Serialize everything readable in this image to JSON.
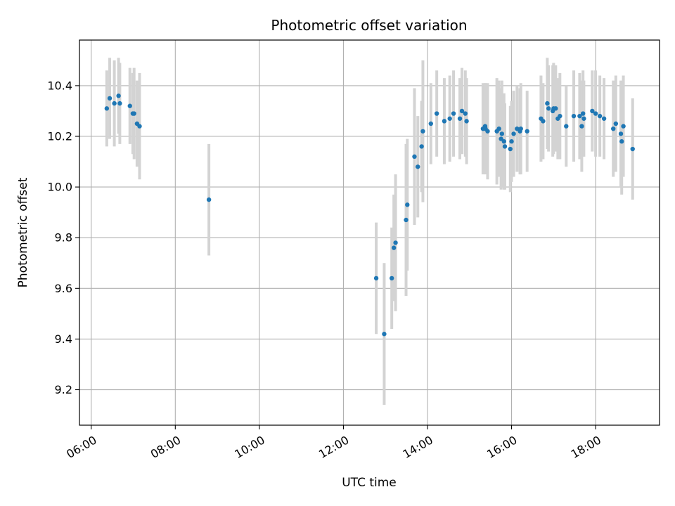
{
  "chart_data": {
    "type": "scatter",
    "title": "Photometric offset variation",
    "xlabel": "UTC time",
    "ylabel": "Photometric offset",
    "x_unit": "hours UTC",
    "xlim": [
      5.72,
      19.52
    ],
    "ylim": [
      9.06,
      10.58
    ],
    "x_ticks": [
      6,
      8,
      10,
      12,
      14,
      16,
      18
    ],
    "x_tick_labels": [
      "06:00",
      "08:00",
      "10:00",
      "12:00",
      "14:00",
      "16:00",
      "18:00"
    ],
    "y_ticks": [
      9.2,
      9.4,
      9.6,
      9.8,
      10.0,
      10.2,
      10.4
    ],
    "y_tick_labels": [
      "9.2",
      "9.4",
      "9.6",
      "9.8",
      "10.0",
      "10.2",
      "10.4"
    ],
    "grid": true,
    "colors": {
      "point": "#1f77b4",
      "errorbar": "#d3d3d3",
      "grid": "#b0b0b0"
    },
    "series": [
      {
        "x": [
          6.37,
          6.44,
          6.55,
          6.65,
          6.68,
          6.92,
          6.99,
          7.02,
          7.09,
          7.15,
          8.8,
          12.78,
          12.97,
          13.15,
          13.2,
          13.24,
          13.49,
          13.52,
          13.69,
          13.77,
          13.86,
          13.89,
          14.08,
          14.22,
          14.4,
          14.53,
          14.62,
          14.77,
          14.82,
          14.9,
          14.93,
          15.32,
          15.37,
          15.38,
          15.43,
          15.65,
          15.7,
          15.75,
          15.77,
          15.82,
          15.84,
          15.97,
          16.0,
          16.05,
          16.13,
          16.2,
          16.22,
          16.37,
          16.7,
          16.75,
          16.85,
          16.88,
          16.98,
          17.0,
          17.05,
          17.1,
          17.15,
          17.3,
          17.48,
          17.62,
          17.67,
          17.7,
          17.72,
          17.92,
          18.0,
          18.1,
          18.2,
          18.42,
          18.48,
          18.6,
          18.62,
          18.66,
          18.88
        ],
        "y": [
          10.31,
          10.35,
          10.33,
          10.36,
          10.33,
          10.32,
          10.29,
          10.29,
          10.25,
          10.24,
          9.95,
          9.64,
          9.42,
          9.64,
          9.76,
          9.78,
          9.87,
          9.93,
          10.12,
          10.08,
          10.16,
          10.22,
          10.25,
          10.29,
          10.26,
          10.27,
          10.29,
          10.27,
          10.3,
          10.29,
          10.26,
          10.23,
          10.24,
          10.23,
          10.22,
          10.22,
          10.23,
          10.19,
          10.21,
          10.18,
          10.16,
          10.15,
          10.18,
          10.21,
          10.23,
          10.22,
          10.23,
          10.22,
          10.27,
          10.26,
          10.33,
          10.31,
          10.3,
          10.31,
          10.31,
          10.27,
          10.28,
          10.24,
          10.28,
          10.28,
          10.24,
          10.29,
          10.27,
          10.3,
          10.29,
          10.28,
          10.27,
          10.23,
          10.25,
          10.21,
          10.18,
          10.24,
          10.15
        ],
        "yerr": [
          0.15,
          0.16,
          0.17,
          0.15,
          0.16,
          0.15,
          0.16,
          0.18,
          0.17,
          0.21,
          0.22,
          0.22,
          0.28,
          0.2,
          0.21,
          0.27,
          0.3,
          0.26,
          0.27,
          0.2,
          0.18,
          0.28,
          0.16,
          0.17,
          0.17,
          0.17,
          0.17,
          0.16,
          0.17,
          0.17,
          0.17,
          0.18,
          0.17,
          0.18,
          0.19,
          0.21,
          0.19,
          0.2,
          0.21,
          0.19,
          0.17,
          0.17,
          0.16,
          0.17,
          0.17,
          0.17,
          0.18,
          0.16,
          0.17,
          0.15,
          0.18,
          0.17,
          0.18,
          0.18,
          0.17,
          0.16,
          0.17,
          0.16,
          0.18,
          0.17,
          0.18,
          0.17,
          0.15,
          0.16,
          0.17,
          0.16,
          0.16,
          0.19,
          0.19,
          0.21,
          0.21,
          0.2,
          0.2
        ]
      }
    ]
  }
}
